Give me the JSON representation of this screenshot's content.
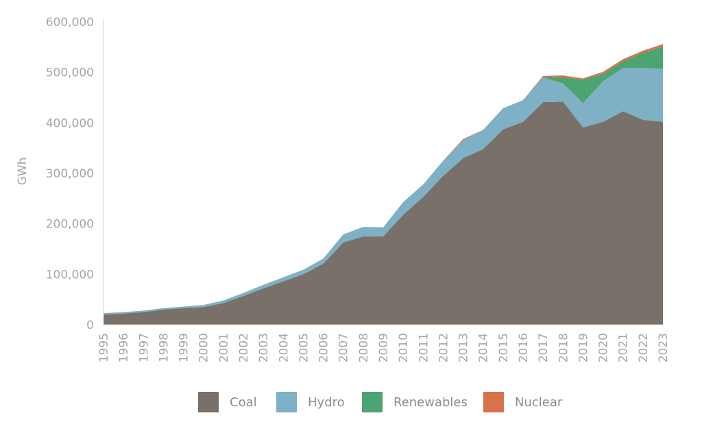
{
  "chart_data": {
    "type": "area",
    "stacked": true,
    "title": "",
    "xlabel": "",
    "ylabel": "GWh",
    "ylim": [
      0,
      600000
    ],
    "yticks": [
      0,
      100000,
      200000,
      300000,
      400000,
      500000,
      600000
    ],
    "ytick_labels": [
      "0",
      "100,000",
      "200,000",
      "300,000",
      "400,000",
      "500,000",
      "600,000"
    ],
    "categories": [
      "1995",
      "1996",
      "1997",
      "1998",
      "1999",
      "2000",
      "2001",
      "2002",
      "2003",
      "2004",
      "2005",
      "2006",
      "2007",
      "2008",
      "2009",
      "2010",
      "2011",
      "2012",
      "2013",
      "2014",
      "2015",
      "2016",
      "2017",
      "2018",
      "2019",
      "2020",
      "2021",
      "2022",
      "2023"
    ],
    "series": [
      {
        "name": "Coal",
        "color": "#787069",
        "values": [
          20000,
          22000,
          25000,
          30000,
          33000,
          35000,
          43000,
          57000,
          72000,
          86000,
          100000,
          121000,
          163000,
          175000,
          175000,
          218000,
          253000,
          295000,
          330000,
          348000,
          387000,
          402000,
          441000,
          442000,
          391000,
          402000,
          423000,
          406000,
          402000
        ]
      },
      {
        "name": "Hydro",
        "color": "#7eb0c6",
        "values": [
          3000,
          3000,
          3000,
          3000,
          3000,
          4000,
          5000,
          6000,
          7000,
          8000,
          9000,
          10000,
          16000,
          19000,
          18000,
          25000,
          25000,
          30000,
          36000,
          38000,
          42000,
          43000,
          49000,
          36000,
          48000,
          80000,
          86000,
          103000,
          105000
        ]
      },
      {
        "name": "Renewables",
        "color": "#4ca471",
        "values": [
          0,
          0,
          0,
          0,
          0,
          0,
          0,
          0,
          0,
          0,
          0,
          0,
          0,
          0,
          0,
          0,
          0,
          0,
          0,
          0,
          0,
          0,
          1000,
          12000,
          47000,
          15000,
          13000,
          30000,
          44000
        ]
      },
      {
        "name": "Nuclear",
        "color": "#d9724a",
        "values": [
          0,
          0,
          0,
          0,
          0,
          0,
          0,
          0,
          0,
          0,
          0,
          0,
          0,
          0,
          0,
          0,
          0,
          0,
          2000,
          0,
          0,
          0,
          2000,
          4000,
          2000,
          4000,
          4000,
          4000,
          5000
        ]
      }
    ],
    "legend_position": "bottom",
    "grid": false
  }
}
